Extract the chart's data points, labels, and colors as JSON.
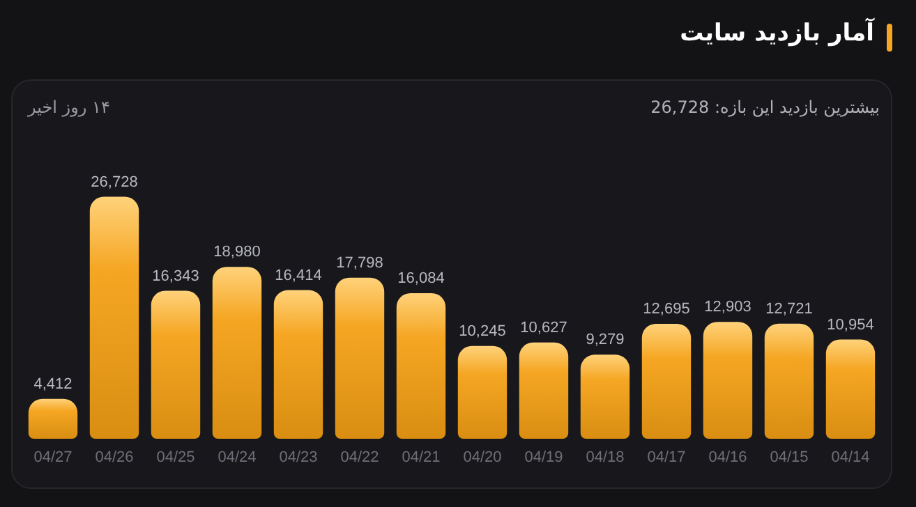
{
  "chart_data": {
    "type": "bar",
    "title": "آمار بازدید سایت",
    "subtitle": "بیشترین بازدید این بازه: 26,728",
    "annotations": [
      "۱۴ روز اخیر"
    ],
    "categories": [
      "04/27",
      "04/26",
      "04/25",
      "04/24",
      "04/23",
      "04/22",
      "04/21",
      "04/20",
      "04/19",
      "04/18",
      "04/17",
      "04/16",
      "04/15",
      "04/14"
    ],
    "values": [
      4412,
      26728,
      16343,
      18980,
      16414,
      17798,
      16084,
      10245,
      10627,
      9279,
      12695,
      12903,
      12721,
      10954
    ],
    "value_labels": [
      "4,412",
      "26,728",
      "16,343",
      "18,980",
      "16,414",
      "17,798",
      "16,084",
      "10,245",
      "10,627",
      "9,279",
      "12,695",
      "12,903",
      "12,721",
      "10,954"
    ],
    "color": "#f5a623"
  }
}
